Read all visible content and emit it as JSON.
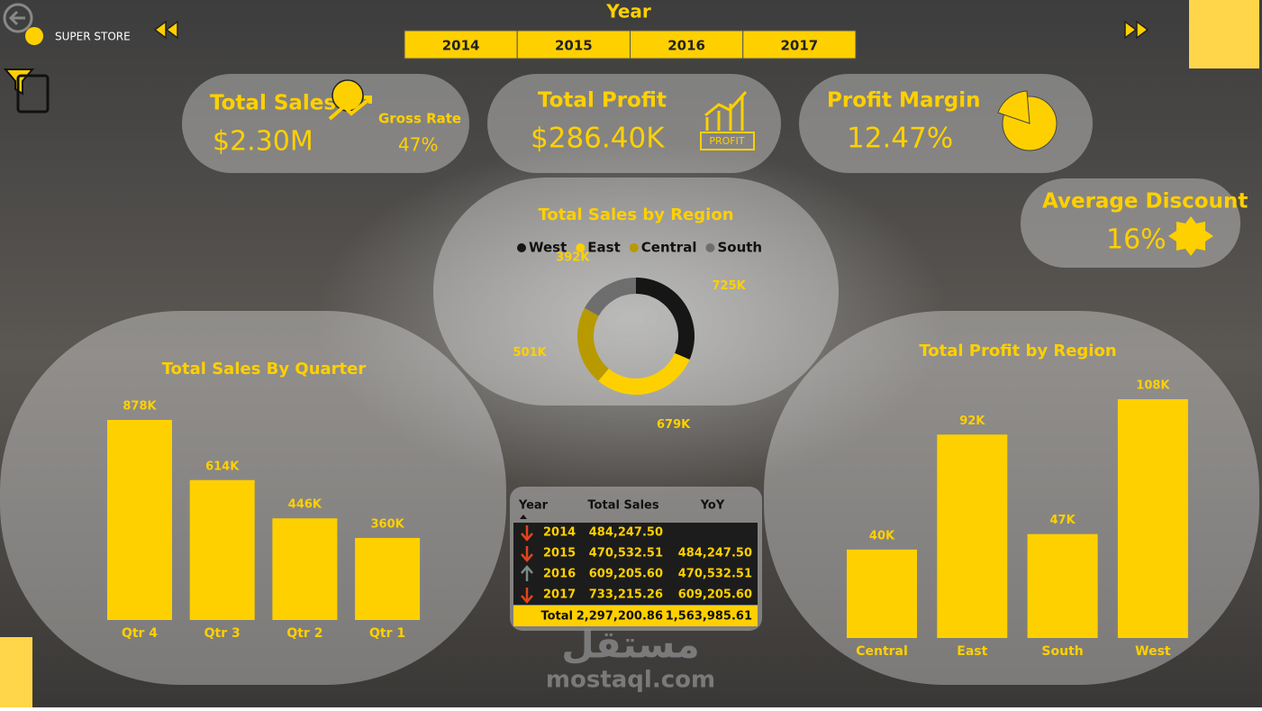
{
  "header": {
    "title": "SUPER STORE",
    "slicer_title": "Year",
    "years": [
      "2014",
      "2015",
      "2016",
      "2017"
    ]
  },
  "kpis": [
    {
      "title": "Total Sales",
      "value": "$2.30M",
      "sub_label": "Gross Rate",
      "sub_value": "47%"
    },
    {
      "title": "Total Profit",
      "value": "$286.40K",
      "icon_label": "PROFIT"
    },
    {
      "title": "Profit Margin",
      "value": "12.47%"
    },
    {
      "title": "Average Discount",
      "value": "16%"
    }
  ],
  "table": {
    "columns": [
      "Year",
      "Total Sales",
      "YoY"
    ],
    "rows": [
      [
        "2014",
        "484,247.50"
      ],
      [
        "2015",
        "470,532.51",
        "484,247.50"
      ],
      [
        "2016",
        "609,205.60",
        "470,532.51"
      ],
      [
        "2017",
        "733,215.26",
        "609,205.60"
      ]
    ],
    "total": [
      "Total",
      "2,297,200.86",
      "1,563,985.61"
    ]
  },
  "watermark": {
    "arabic": "مستقل",
    "text": "mostaql.com"
  },
  "chart_data": [
    {
      "type": "bar",
      "title": "Total Sales By Quarter",
      "categories": [
        "Qtr 4",
        "Qtr 3",
        "Qtr 2",
        "Qtr 1"
      ],
      "values": [
        878,
        614,
        446,
        360
      ],
      "value_labels": [
        "878K",
        "614K",
        "446K",
        "360K"
      ],
      "color": "#ffd000"
    },
    {
      "type": "donut",
      "title": "Total Sales by Region",
      "categories": [
        "West",
        "East",
        "Central",
        "South"
      ],
      "values": [
        725,
        679,
        501,
        392
      ],
      "value_labels": [
        "725K",
        "679K",
        "501K",
        "392K"
      ],
      "colors": [
        "#161616",
        "#ffd000",
        "#b89a00",
        "#6e6e6e"
      ],
      "legend": "top"
    },
    {
      "type": "bar",
      "title": "Total Profit by Region",
      "categories": [
        "Central",
        "East",
        "South",
        "West"
      ],
      "values": [
        40,
        92,
        47,
        108
      ],
      "value_labels": [
        "40K",
        "92K",
        "47K",
        "108K"
      ],
      "color": "#ffd000"
    }
  ]
}
